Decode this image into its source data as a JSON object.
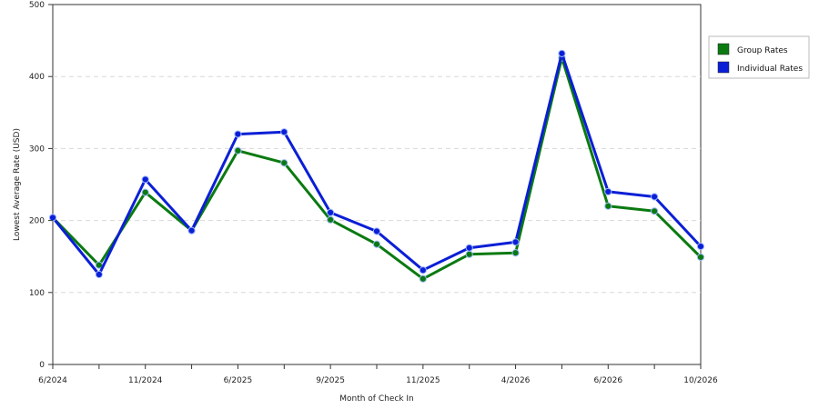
{
  "chart_data": {
    "type": "line",
    "xlabel": "Month of Check In",
    "ylabel": "Lowest Average Rate (USD)",
    "ylim": [
      0,
      500
    ],
    "yticks": [
      "0",
      "100",
      "200",
      "300",
      "400",
      "500"
    ],
    "x_tick_labels": [
      "6/2024",
      "",
      "11/2024",
      "",
      "6/2025",
      "",
      "9/2025",
      "",
      "11/2025",
      "",
      "4/2026",
      "",
      "6/2026",
      "",
      "10/2026"
    ],
    "grid": "horizontal-dashed",
    "legend_position": "right",
    "series": [
      {
        "name": "Group Rates",
        "color": "#0a7a10",
        "values": [
          204,
          138,
          239,
          186,
          297,
          280,
          201,
          167,
          119,
          153,
          155,
          426,
          220,
          213,
          149
        ]
      },
      {
        "name": "Individual Rates",
        "color": "#0b1fd6",
        "values": [
          204,
          125,
          257,
          186,
          320,
          323,
          211,
          185,
          131,
          162,
          170,
          432,
          240,
          233,
          164
        ]
      }
    ]
  }
}
